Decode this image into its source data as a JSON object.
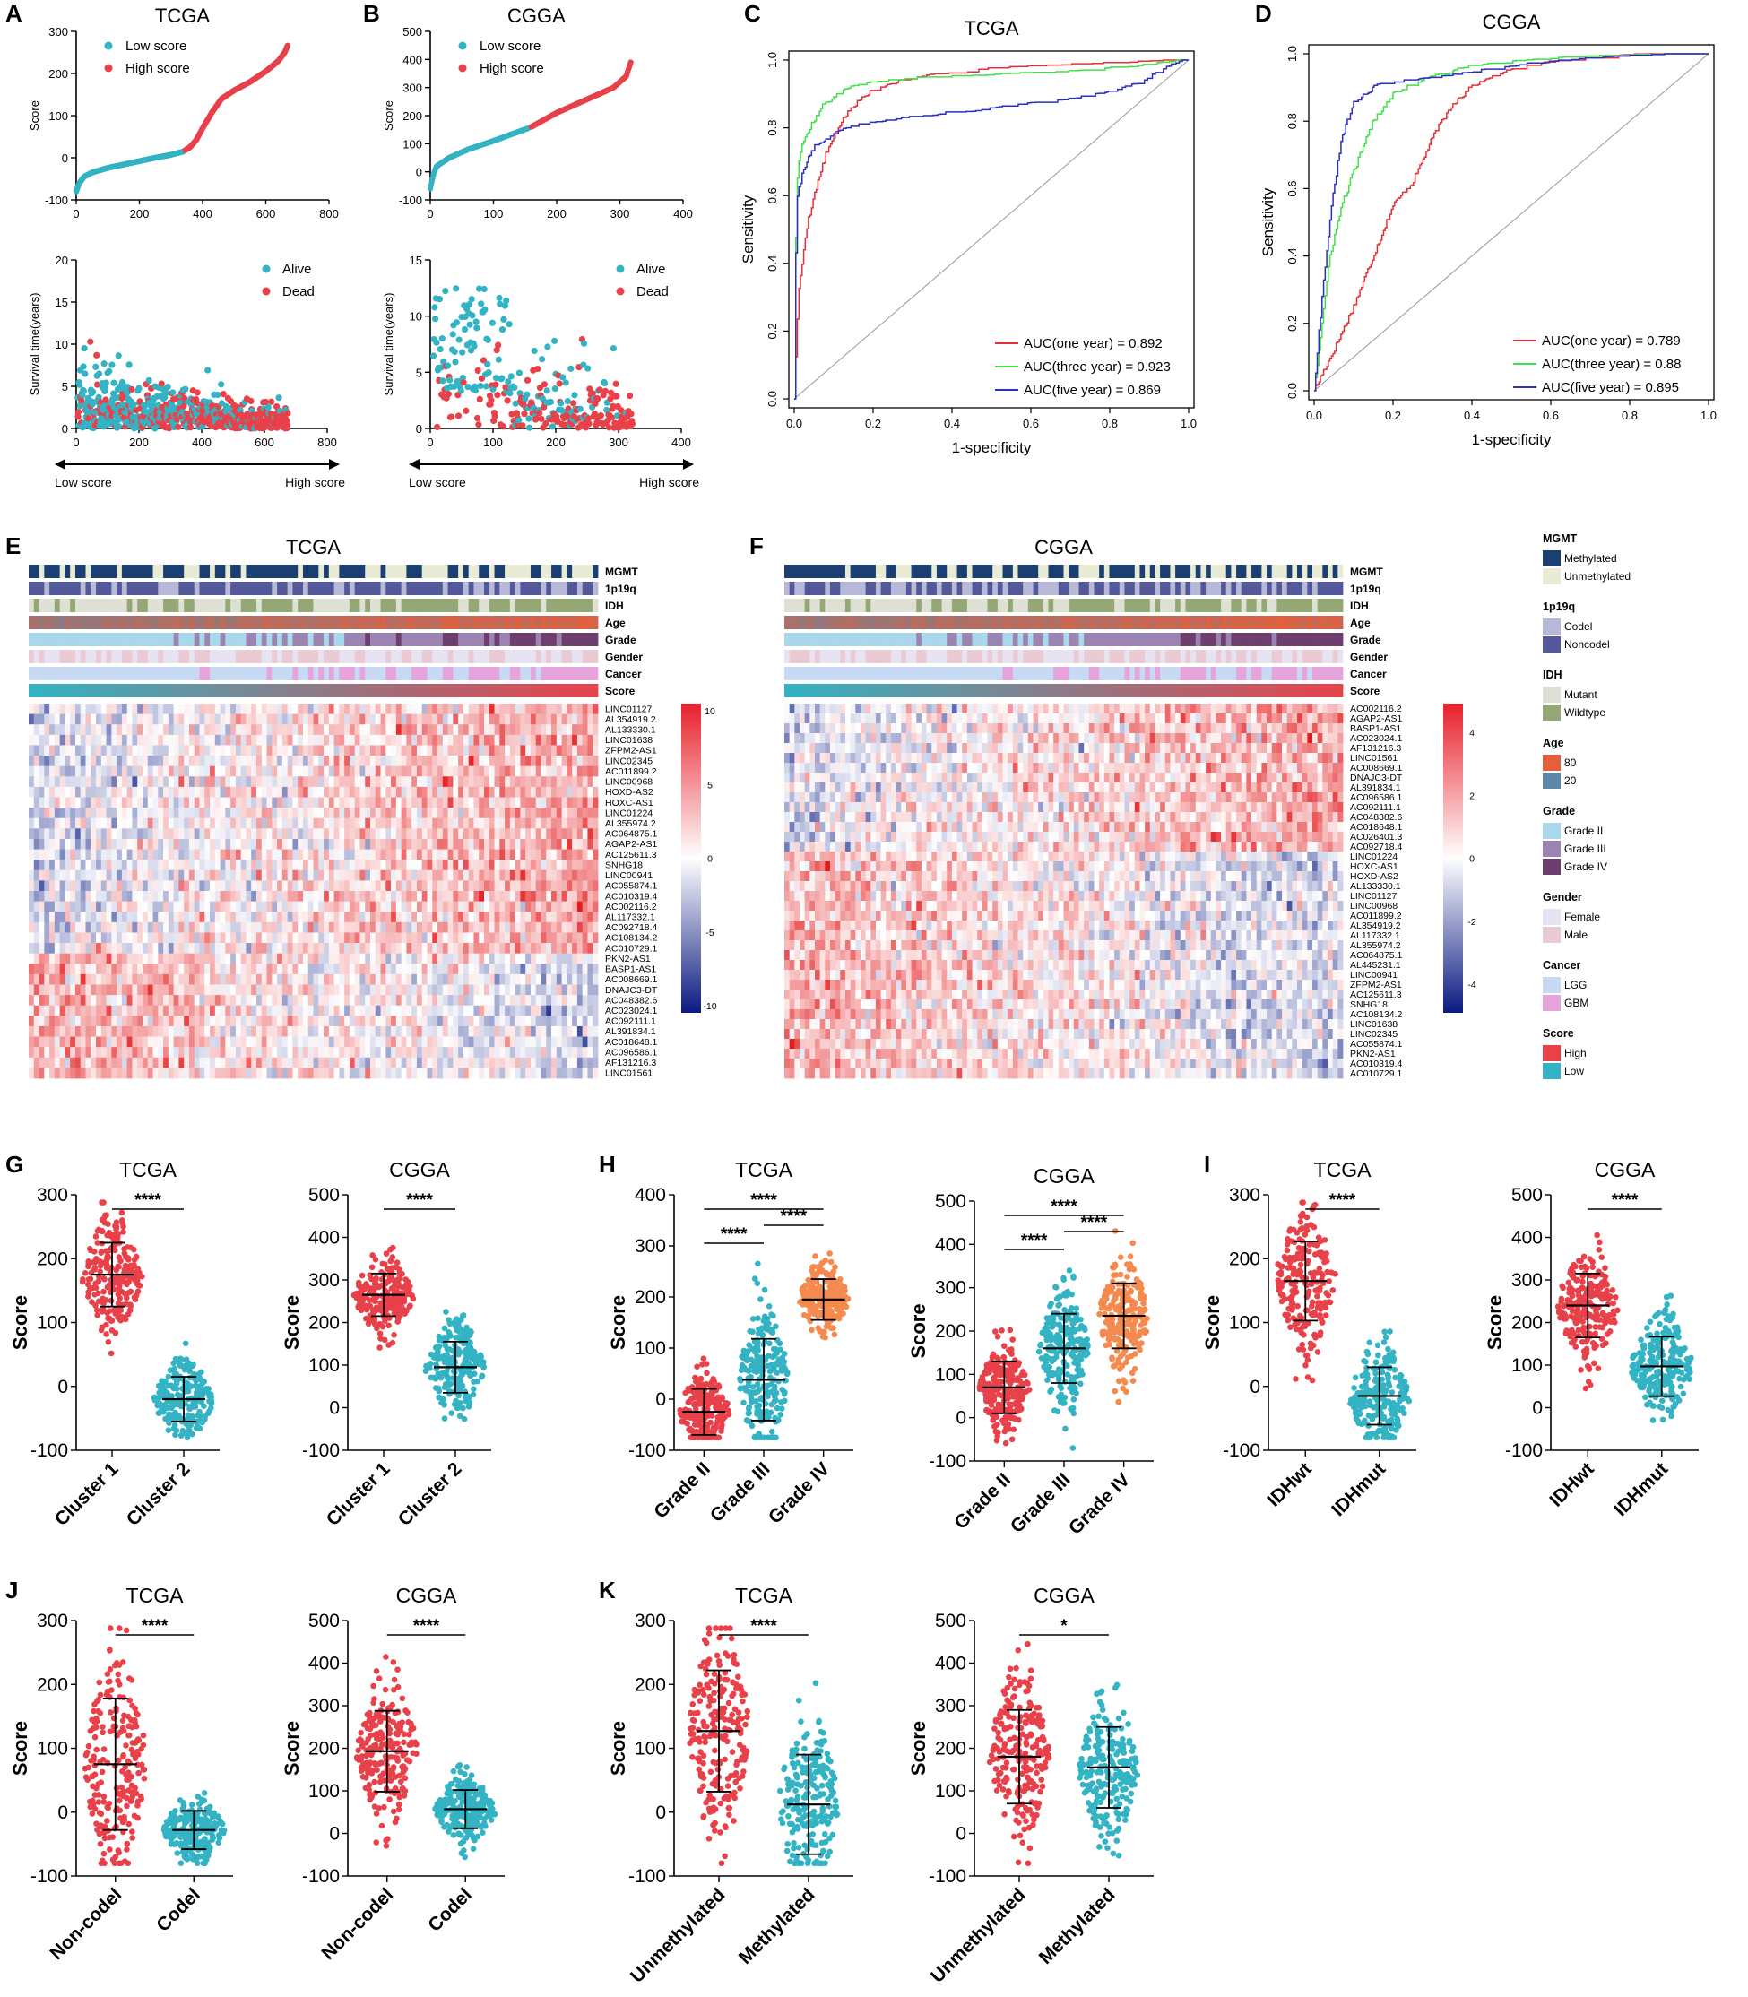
{
  "figure": {
    "panel_letters": [
      "A",
      "B",
      "C",
      "D",
      "E",
      "F",
      "G",
      "H",
      "I",
      "J",
      "K"
    ]
  },
  "colors": {
    "teal": "#33b3c3",
    "red": "#e8414a",
    "orange": "#f58a4e",
    "roc_red": "#e3303a",
    "roc_green": "#3fe04b",
    "roc_blue": "#2a2fbf",
    "heat_high": "#e31a1c",
    "heat_mid": "#ffffff",
    "heat_low": "#08306b"
  },
  "chart_data": [
    {
      "id": "A",
      "type": "scatter",
      "title": "TCGA",
      "sub": "risk-score",
      "xlabel": "",
      "ylabel": "Score",
      "xlim": [
        0,
        800
      ],
      "ylim": [
        -100,
        300
      ],
      "xticks": [
        "0",
        "200",
        "400",
        "600",
        "800"
      ],
      "yticks": [
        "-100",
        "0",
        "100",
        "200",
        "300"
      ],
      "legend": [
        "Low score",
        "High score"
      ],
      "series": [
        {
          "name": "Low score",
          "x": [
            0,
            10,
            25,
            50,
            100,
            150,
            200,
            250,
            300,
            340
          ],
          "y": [
            -80,
            -60,
            -45,
            -35,
            -24,
            -16,
            -8,
            0,
            7,
            15
          ]
        },
        {
          "name": "High score",
          "x": [
            345,
            360,
            380,
            400,
            430,
            460,
            500,
            550,
            600,
            640,
            660,
            670
          ],
          "y": [
            18,
            25,
            42,
            70,
            108,
            140,
            160,
            180,
            205,
            230,
            250,
            268
          ]
        }
      ]
    },
    {
      "id": "A2",
      "type": "scatter",
      "title": "",
      "sub": "survival",
      "xlabel": "",
      "ylabel": "Survival time(years)",
      "xlim": [
        0,
        800
      ],
      "ylim": [
        0,
        20
      ],
      "xticks": [
        "0",
        "200",
        "400",
        "600",
        "800"
      ],
      "yticks": [
        "0",
        "5",
        "10",
        "15",
        "20"
      ],
      "legend": [
        "Alive",
        "Dead"
      ],
      "arrow_left": "Low score",
      "arrow_right": "High score",
      "n": 670
    },
    {
      "id": "B",
      "type": "scatter",
      "title": "CGGA",
      "sub": "risk-score",
      "xlabel": "",
      "ylabel": "Score",
      "xlim": [
        0,
        400
      ],
      "ylim": [
        -100,
        500
      ],
      "xticks": [
        "0",
        "100",
        "200",
        "300",
        "400"
      ],
      "yticks": [
        "-100",
        "0",
        "100",
        "200",
        "300",
        "400",
        "500"
      ],
      "legend": [
        "Low score",
        "High score"
      ],
      "series": [
        {
          "name": "Low score",
          "x": [
            0,
            5,
            10,
            30,
            60,
            100,
            130,
            155
          ],
          "y": [
            -60,
            -10,
            20,
            50,
            80,
            110,
            135,
            155
          ]
        },
        {
          "name": "High score",
          "x": [
            160,
            180,
            200,
            230,
            260,
            290,
            310,
            318
          ],
          "y": [
            160,
            185,
            210,
            240,
            270,
            300,
            340,
            395
          ]
        }
      ]
    },
    {
      "id": "B2",
      "type": "scatter",
      "title": "",
      "sub": "survival",
      "xlabel": "",
      "ylabel": "Survival time(years)",
      "xlim": [
        0,
        400
      ],
      "ylim": [
        0,
        15
      ],
      "xticks": [
        "0",
        "100",
        "200",
        "300",
        "400"
      ],
      "yticks": [
        "0",
        "5",
        "10",
        "15"
      ],
      "legend": [
        "Alive",
        "Dead"
      ],
      "arrow_left": "Low score",
      "arrow_right": "High score",
      "n": 318
    },
    {
      "id": "C",
      "type": "line",
      "title": "TCGA",
      "xlabel": "1-specificity",
      "ylabel": "Sensitivity",
      "xlim": [
        0,
        1
      ],
      "ylim": [
        0,
        1
      ],
      "xticks": [
        "0.0",
        "0.2",
        "0.4",
        "0.6",
        "0.8",
        "1.0"
      ],
      "yticks": [
        "0.0",
        "0.2",
        "0.4",
        "0.6",
        "0.8",
        "1.0"
      ],
      "series": [
        {
          "name": "AUC(one year) = 0.892",
          "x": [
            0,
            0.01,
            0.03,
            0.05,
            0.08,
            0.12,
            0.18,
            0.25,
            0.35,
            0.5,
            0.7,
            0.9,
            1
          ],
          "y": [
            0,
            0.3,
            0.5,
            0.6,
            0.72,
            0.82,
            0.9,
            0.93,
            0.95,
            0.97,
            0.98,
            0.99,
            1
          ]
        },
        {
          "name": "AUC(three year) = 0.923",
          "x": [
            0,
            0.005,
            0.01,
            0.02,
            0.04,
            0.07,
            0.1,
            0.15,
            0.2,
            0.3,
            0.5,
            0.7,
            0.9,
            1
          ],
          "y": [
            0,
            0.6,
            0.7,
            0.75,
            0.8,
            0.86,
            0.89,
            0.92,
            0.93,
            0.94,
            0.95,
            0.96,
            0.98,
            1
          ]
        },
        {
          "name": "AUC(five year) = 0.869",
          "x": [
            0,
            0.005,
            0.01,
            0.03,
            0.05,
            0.1,
            0.15,
            0.25,
            0.4,
            0.55,
            0.7,
            0.8,
            0.88,
            0.95,
            1
          ],
          "y": [
            0,
            0.55,
            0.62,
            0.7,
            0.74,
            0.78,
            0.8,
            0.82,
            0.84,
            0.86,
            0.88,
            0.9,
            0.93,
            0.98,
            1
          ]
        }
      ]
    },
    {
      "id": "D",
      "type": "line",
      "title": "CGGA",
      "xlabel": "1-specificity",
      "ylabel": "Sensitivity",
      "xlim": [
        0,
        1
      ],
      "ylim": [
        0,
        1
      ],
      "xticks": [
        "0.0",
        "0.2",
        "0.4",
        "0.6",
        "0.8",
        "1.0"
      ],
      "yticks": [
        "0.0",
        "0.2",
        "0.4",
        "0.6",
        "0.8",
        "1.0"
      ],
      "series": [
        {
          "name": "AUC(one year) = 0.789",
          "x": [
            0,
            0.02,
            0.05,
            0.1,
            0.15,
            0.2,
            0.25,
            0.3,
            0.35,
            0.4,
            0.5,
            0.6,
            0.8,
            1
          ],
          "y": [
            0,
            0.05,
            0.12,
            0.25,
            0.4,
            0.55,
            0.62,
            0.75,
            0.85,
            0.9,
            0.95,
            0.97,
            0.99,
            1
          ]
        },
        {
          "name": "AUC(three year) = 0.88",
          "x": [
            0,
            0.02,
            0.04,
            0.07,
            0.1,
            0.15,
            0.2,
            0.3,
            0.4,
            0.6,
            0.8,
            1
          ],
          "y": [
            0,
            0.2,
            0.4,
            0.55,
            0.65,
            0.8,
            0.88,
            0.93,
            0.96,
            0.98,
            0.99,
            1
          ]
        },
        {
          "name": "AUC(five year) = 0.895",
          "x": [
            0,
            0.01,
            0.03,
            0.05,
            0.07,
            0.1,
            0.15,
            0.2,
            0.35,
            0.5,
            0.7,
            0.85,
            1
          ],
          "y": [
            0,
            0.15,
            0.4,
            0.6,
            0.75,
            0.85,
            0.9,
            0.91,
            0.93,
            0.96,
            0.98,
            0.99,
            1
          ]
        }
      ]
    },
    {
      "id": "E",
      "type": "heatmap",
      "title": "TCGA",
      "annotations": [
        "MGMT",
        "1p19q",
        "IDH",
        "Age",
        "Grade",
        "Gender",
        "Cancer",
        "Score"
      ],
      "rows": [
        "LINC01127",
        "AL354919.2",
        "AL133330.1",
        "LINC01638",
        "ZFPM2-AS1",
        "LINC02345",
        "AC011899.2",
        "LINC00968",
        "HOXD-AS2",
        "HOXC-AS1",
        "LINC01224",
        "AL355974.2",
        "AC064875.1",
        "AGAP2-AS1",
        "AC125611.3",
        "SNHG18",
        "LINC00941",
        "AC055874.1",
        "AC010319.4",
        "AC002116.2",
        "AL117332.1",
        "AC092718.4",
        "AC108134.2",
        "AC010729.1",
        "PKN2-AS1",
        "BASP1-AS1",
        "AC008669.1",
        "DNAJC3-DT",
        "AC048382.6",
        "AC023024.1",
        "AC092111.1",
        "AL391834.1",
        "AC018648.1",
        "AC096586.1",
        "AF131216.3",
        "LINC01561"
      ],
      "colorbar": [
        "10",
        "5",
        "0",
        "-5",
        "-10"
      ]
    },
    {
      "id": "F",
      "type": "heatmap",
      "title": "CGGA",
      "annotations": [
        "MGMT",
        "1p19q",
        "IDH",
        "Age",
        "Grade",
        "Gender",
        "Cancer",
        "Score"
      ],
      "rows": [
        "AC002116.2",
        "AGAP2-AS1",
        "BASP1-AS1",
        "AC023024.1",
        "AF131216.3",
        "LINC01561",
        "AC008669.1",
        "DNAJC3-DT",
        "AL391834.1",
        "AC096586.1",
        "AC092111.1",
        "AC048382.6",
        "AC018648.1",
        "AC026401.3",
        "AC092718.4",
        "LINC01224",
        "HOXC-AS1",
        "HOXD-AS2",
        "AL133330.1",
        "LINC01127",
        "LINC00968",
        "AC011899.2",
        "AL354919.2",
        "AL117332.1",
        "AL355974.2",
        "AC064875.1",
        "AL445231.1",
        "LINC00941",
        "ZFPM2-AS1",
        "AC125611.3",
        "SNHG18",
        "AC108134.2",
        "LINC01638",
        "LINC02345",
        "AC055874.1",
        "PKN2-AS1",
        "AC010319.4",
        "AC010729.1"
      ],
      "colorbar": [
        "4",
        "2",
        "0",
        "-2",
        "-4"
      ]
    },
    {
      "id": "G1",
      "type": "scatter",
      "title": "TCGA",
      "ylabel": "Score",
      "ylim": [
        -100,
        300
      ],
      "yticks": [
        "-100",
        "0",
        "100",
        "200",
        "300"
      ],
      "categories": [
        "Cluster 1",
        "Cluster 2"
      ],
      "means": [
        175,
        -20
      ],
      "sds": [
        50,
        35
      ],
      "sig": [
        {
          "a": 0,
          "b": 1,
          "label": "****"
        }
      ]
    },
    {
      "id": "G2",
      "type": "scatter",
      "title": "CGGA",
      "ylabel": "Score",
      "ylim": [
        -100,
        500
      ],
      "yticks": [
        "-100",
        "0",
        "100",
        "200",
        "300",
        "400",
        "500"
      ],
      "categories": [
        "Cluster 1",
        "Cluster 2"
      ],
      "means": [
        265,
        95
      ],
      "sds": [
        50,
        60
      ],
      "sig": [
        {
          "a": 0,
          "b": 1,
          "label": "****"
        }
      ]
    },
    {
      "id": "H1",
      "type": "scatter",
      "title": "TCGA",
      "ylabel": "Score",
      "ylim": [
        -100,
        400
      ],
      "yticks": [
        "-100",
        "0",
        "100",
        "200",
        "300",
        "400"
      ],
      "categories": [
        "Grade II",
        "Grade III",
        "Grade IV"
      ],
      "means": [
        -25,
        38,
        195
      ],
      "sds": [
        45,
        80,
        40
      ],
      "sig": [
        {
          "a": 0,
          "b": 1,
          "label": "****"
        },
        {
          "a": 1,
          "b": 2,
          "label": "****"
        },
        {
          "a": 0,
          "b": 2,
          "label": "****"
        }
      ]
    },
    {
      "id": "H2",
      "type": "scatter",
      "title": "CGGA",
      "ylabel": "Score",
      "ylim": [
        -100,
        500
      ],
      "yticks": [
        "-100",
        "0",
        "100",
        "200",
        "300",
        "400",
        "500"
      ],
      "categories": [
        "Grade II",
        "Grade III",
        "Grade IV"
      ],
      "means": [
        70,
        160,
        235
      ],
      "sds": [
        60,
        80,
        75
      ],
      "sig": [
        {
          "a": 0,
          "b": 1,
          "label": "****"
        },
        {
          "a": 1,
          "b": 2,
          "label": "****"
        },
        {
          "a": 0,
          "b": 2,
          "label": "****"
        }
      ]
    },
    {
      "id": "I1",
      "type": "scatter",
      "title": "TCGA",
      "ylabel": "Score",
      "ylim": [
        -100,
        300
      ],
      "yticks": [
        "-100",
        "0",
        "100",
        "200",
        "300"
      ],
      "categories": [
        "IDHwt",
        "IDHmut"
      ],
      "means": [
        165,
        -15
      ],
      "sds": [
        62,
        45
      ],
      "sig": [
        {
          "a": 0,
          "b": 1,
          "label": "****"
        }
      ]
    },
    {
      "id": "I2",
      "type": "scatter",
      "title": "CGGA",
      "ylabel": "Score",
      "ylim": [
        -100,
        500
      ],
      "yticks": [
        "-100",
        "0",
        "100",
        "200",
        "300",
        "400",
        "500"
      ],
      "categories": [
        "IDHwt",
        "IDHmut"
      ],
      "means": [
        240,
        97
      ],
      "sds": [
        75,
        70
      ],
      "sig": [
        {
          "a": 0,
          "b": 1,
          "label": "****"
        }
      ]
    },
    {
      "id": "J1",
      "type": "scatter",
      "title": "TCGA",
      "ylabel": "Score",
      "ylim": [
        -100,
        300
      ],
      "yticks": [
        "-100",
        "0",
        "100",
        "200",
        "300"
      ],
      "categories": [
        "Non-codel",
        "Codel"
      ],
      "means": [
        75,
        -28
      ],
      "sds": [
        103,
        30
      ],
      "sig": [
        {
          "a": 0,
          "b": 1,
          "label": "****"
        }
      ]
    },
    {
      "id": "J2",
      "type": "scatter",
      "title": "CGGA",
      "ylabel": "Score",
      "ylim": [
        -100,
        500
      ],
      "yticks": [
        "-100",
        "0",
        "100",
        "200",
        "300",
        "400",
        "500"
      ],
      "categories": [
        "Non-codel",
        "Codel"
      ],
      "means": [
        193,
        57
      ],
      "sds": [
        95,
        45
      ],
      "sig": [
        {
          "a": 0,
          "b": 1,
          "label": "****"
        }
      ]
    },
    {
      "id": "K1",
      "type": "scatter",
      "title": "TCGA",
      "ylabel": "Score",
      "ylim": [
        -100,
        300
      ],
      "yticks": [
        "-100",
        "0",
        "100",
        "200",
        "300"
      ],
      "categories": [
        "Unmethylated",
        "Methylated"
      ],
      "means": [
        127,
        12
      ],
      "sds": [
        95,
        78
      ],
      "sig": [
        {
          "a": 0,
          "b": 1,
          "label": "****"
        }
      ]
    },
    {
      "id": "K2",
      "type": "scatter",
      "title": "CGGA",
      "ylabel": "Score",
      "ylim": [
        -100,
        500
      ],
      "yticks": [
        "-100",
        "0",
        "100",
        "200",
        "300",
        "400",
        "500"
      ],
      "categories": [
        "Unmethylated",
        "Methylated"
      ],
      "means": [
        180,
        155
      ],
      "sds": [
        110,
        95
      ],
      "sig": [
        {
          "a": 0,
          "b": 1,
          "label": "*"
        }
      ]
    }
  ],
  "legend_panel": {
    "groups": [
      {
        "title": "MGMT",
        "items": [
          {
            "label": "Methylated",
            "color": "#1b3f73"
          },
          {
            "label": "Unmethylated",
            "color": "#e9ecd4"
          }
        ]
      },
      {
        "title": "1p19q",
        "items": [
          {
            "label": "Codel",
            "color": "#b8b9d8"
          },
          {
            "label": "Noncodel",
            "color": "#53589a"
          }
        ]
      },
      {
        "title": "IDH",
        "items": [
          {
            "label": "Mutant",
            "color": "#dfe0d4"
          },
          {
            "label": "Wildtype",
            "color": "#93a874"
          }
        ]
      },
      {
        "title": "Age",
        "items": [
          {
            "label": "80",
            "color": "#e3603c"
          },
          {
            "label": "20",
            "color": "#5e86a6"
          }
        ]
      },
      {
        "title": "Grade",
        "items": [
          {
            "label": "Grade II",
            "color": "#a9d7ec"
          },
          {
            "label": "Grade III",
            "color": "#9b84b3"
          },
          {
            "label": "Grade IV",
            "color": "#6e3f6e"
          }
        ]
      },
      {
        "title": "Gender",
        "items": [
          {
            "label": "Female",
            "color": "#e7e3f2"
          },
          {
            "label": "Male",
            "color": "#eacad3"
          }
        ]
      },
      {
        "title": "Cancer",
        "items": [
          {
            "label": "LGG",
            "color": "#c7d9f3"
          },
          {
            "label": "GBM",
            "color": "#e6a3dc"
          }
        ]
      },
      {
        "title": "Score",
        "items": [
          {
            "label": "High",
            "color": "#e8414a"
          },
          {
            "label": "Low",
            "color": "#33b3c3"
          }
        ]
      }
    ]
  }
}
